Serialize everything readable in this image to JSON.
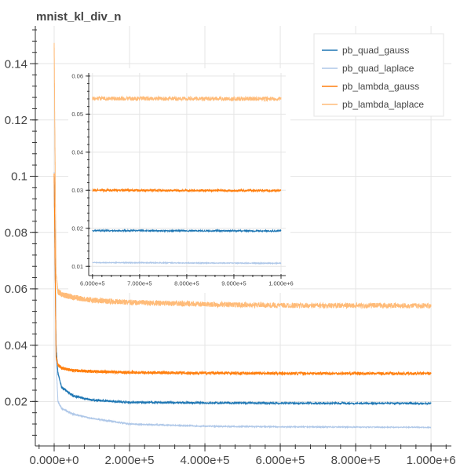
{
  "chart_data": [
    {
      "type": "line",
      "title": "mnist_kl_div_n",
      "xlim": [
        -50000,
        1054000
      ],
      "ylim": [
        0.0042,
        0.1534
      ],
      "x_ticks": [
        0,
        200000,
        400000,
        600000,
        800000,
        1000000
      ],
      "x_tick_labels": [
        "0.000e+0",
        "2.000e+5",
        "4.000e+5",
        "6.000e+5",
        "8.000e+5",
        "1.000e+6"
      ],
      "y_ticks": [
        0.02,
        0.04,
        0.06,
        0.08,
        0.1,
        0.12,
        0.14
      ],
      "y_tick_labels": [
        "0.02",
        "0.04",
        "0.06",
        "0.08",
        "0.1",
        "0.12",
        "0.14"
      ],
      "grid": true,
      "legend_position": "top-right",
      "series": [
        {
          "name": "pb_quad_gauss",
          "color": "#1f77b4",
          "x": [
            0,
            5000,
            10000,
            20000,
            50000,
            100000,
            200000,
            400000,
            600000,
            1000000
          ],
          "y": [
            0.1,
            0.04,
            0.03,
            0.025,
            0.022,
            0.0205,
            0.0197,
            0.0195,
            0.0194,
            0.0193
          ]
        },
        {
          "name": "pb_quad_laplace",
          "color": "#aec7e8",
          "x": [
            0,
            5000,
            10000,
            20000,
            50000,
            100000,
            200000,
            400000,
            600000,
            1000000
          ],
          "y": [
            0.1,
            0.035,
            0.02,
            0.0175,
            0.0155,
            0.014,
            0.012,
            0.0112,
            0.011,
            0.0108
          ]
        },
        {
          "name": "pb_lambda_gauss",
          "color": "#ff7f0e",
          "x": [
            0,
            5000,
            10000,
            20000,
            50000,
            100000,
            200000,
            400000,
            600000,
            1000000
          ],
          "y": [
            0.1,
            0.036,
            0.033,
            0.0318,
            0.031,
            0.0307,
            0.0303,
            0.0301,
            0.03,
            0.0299
          ]
        },
        {
          "name": "pb_lambda_laplace",
          "color": "#ffbb78",
          "x": [
            0,
            5000,
            10000,
            20000,
            50000,
            100000,
            200000,
            400000,
            600000,
            1000000
          ],
          "y": [
            0.146,
            0.065,
            0.059,
            0.058,
            0.057,
            0.056,
            0.0552,
            0.0545,
            0.0541,
            0.054
          ]
        }
      ]
    },
    {
      "type": "line",
      "title": "",
      "xlim": [
        592000,
        1010000
      ],
      "ylim": [
        0.0084,
        0.0608
      ],
      "x_ticks": [
        600000,
        700000,
        800000,
        900000,
        1000000
      ],
      "x_tick_labels": [
        "6.000e+5",
        "7.000e+5",
        "8.000e+5",
        "9.000e+5",
        "1.000e+6"
      ],
      "y_ticks": [
        0.01,
        0.02,
        0.03,
        0.04,
        0.05,
        0.06
      ],
      "y_tick_labels": [
        "0.01",
        "0.02",
        "0.03",
        "0.04",
        "0.05",
        "0.06"
      ],
      "grid": true,
      "series": [
        {
          "color": "#1f77b4",
          "x": [
            600000,
            1000000
          ],
          "y": [
            0.0194,
            0.0193
          ]
        },
        {
          "color": "#aec7e8",
          "x": [
            600000,
            1000000
          ],
          "y": [
            0.011,
            0.0108
          ]
        },
        {
          "color": "#ff7f0e",
          "x": [
            600000,
            1000000
          ],
          "y": [
            0.03,
            0.0299
          ]
        },
        {
          "color": "#ffbb78",
          "x": [
            600000,
            1000000
          ],
          "y": [
            0.0541,
            0.054
          ]
        }
      ]
    }
  ]
}
